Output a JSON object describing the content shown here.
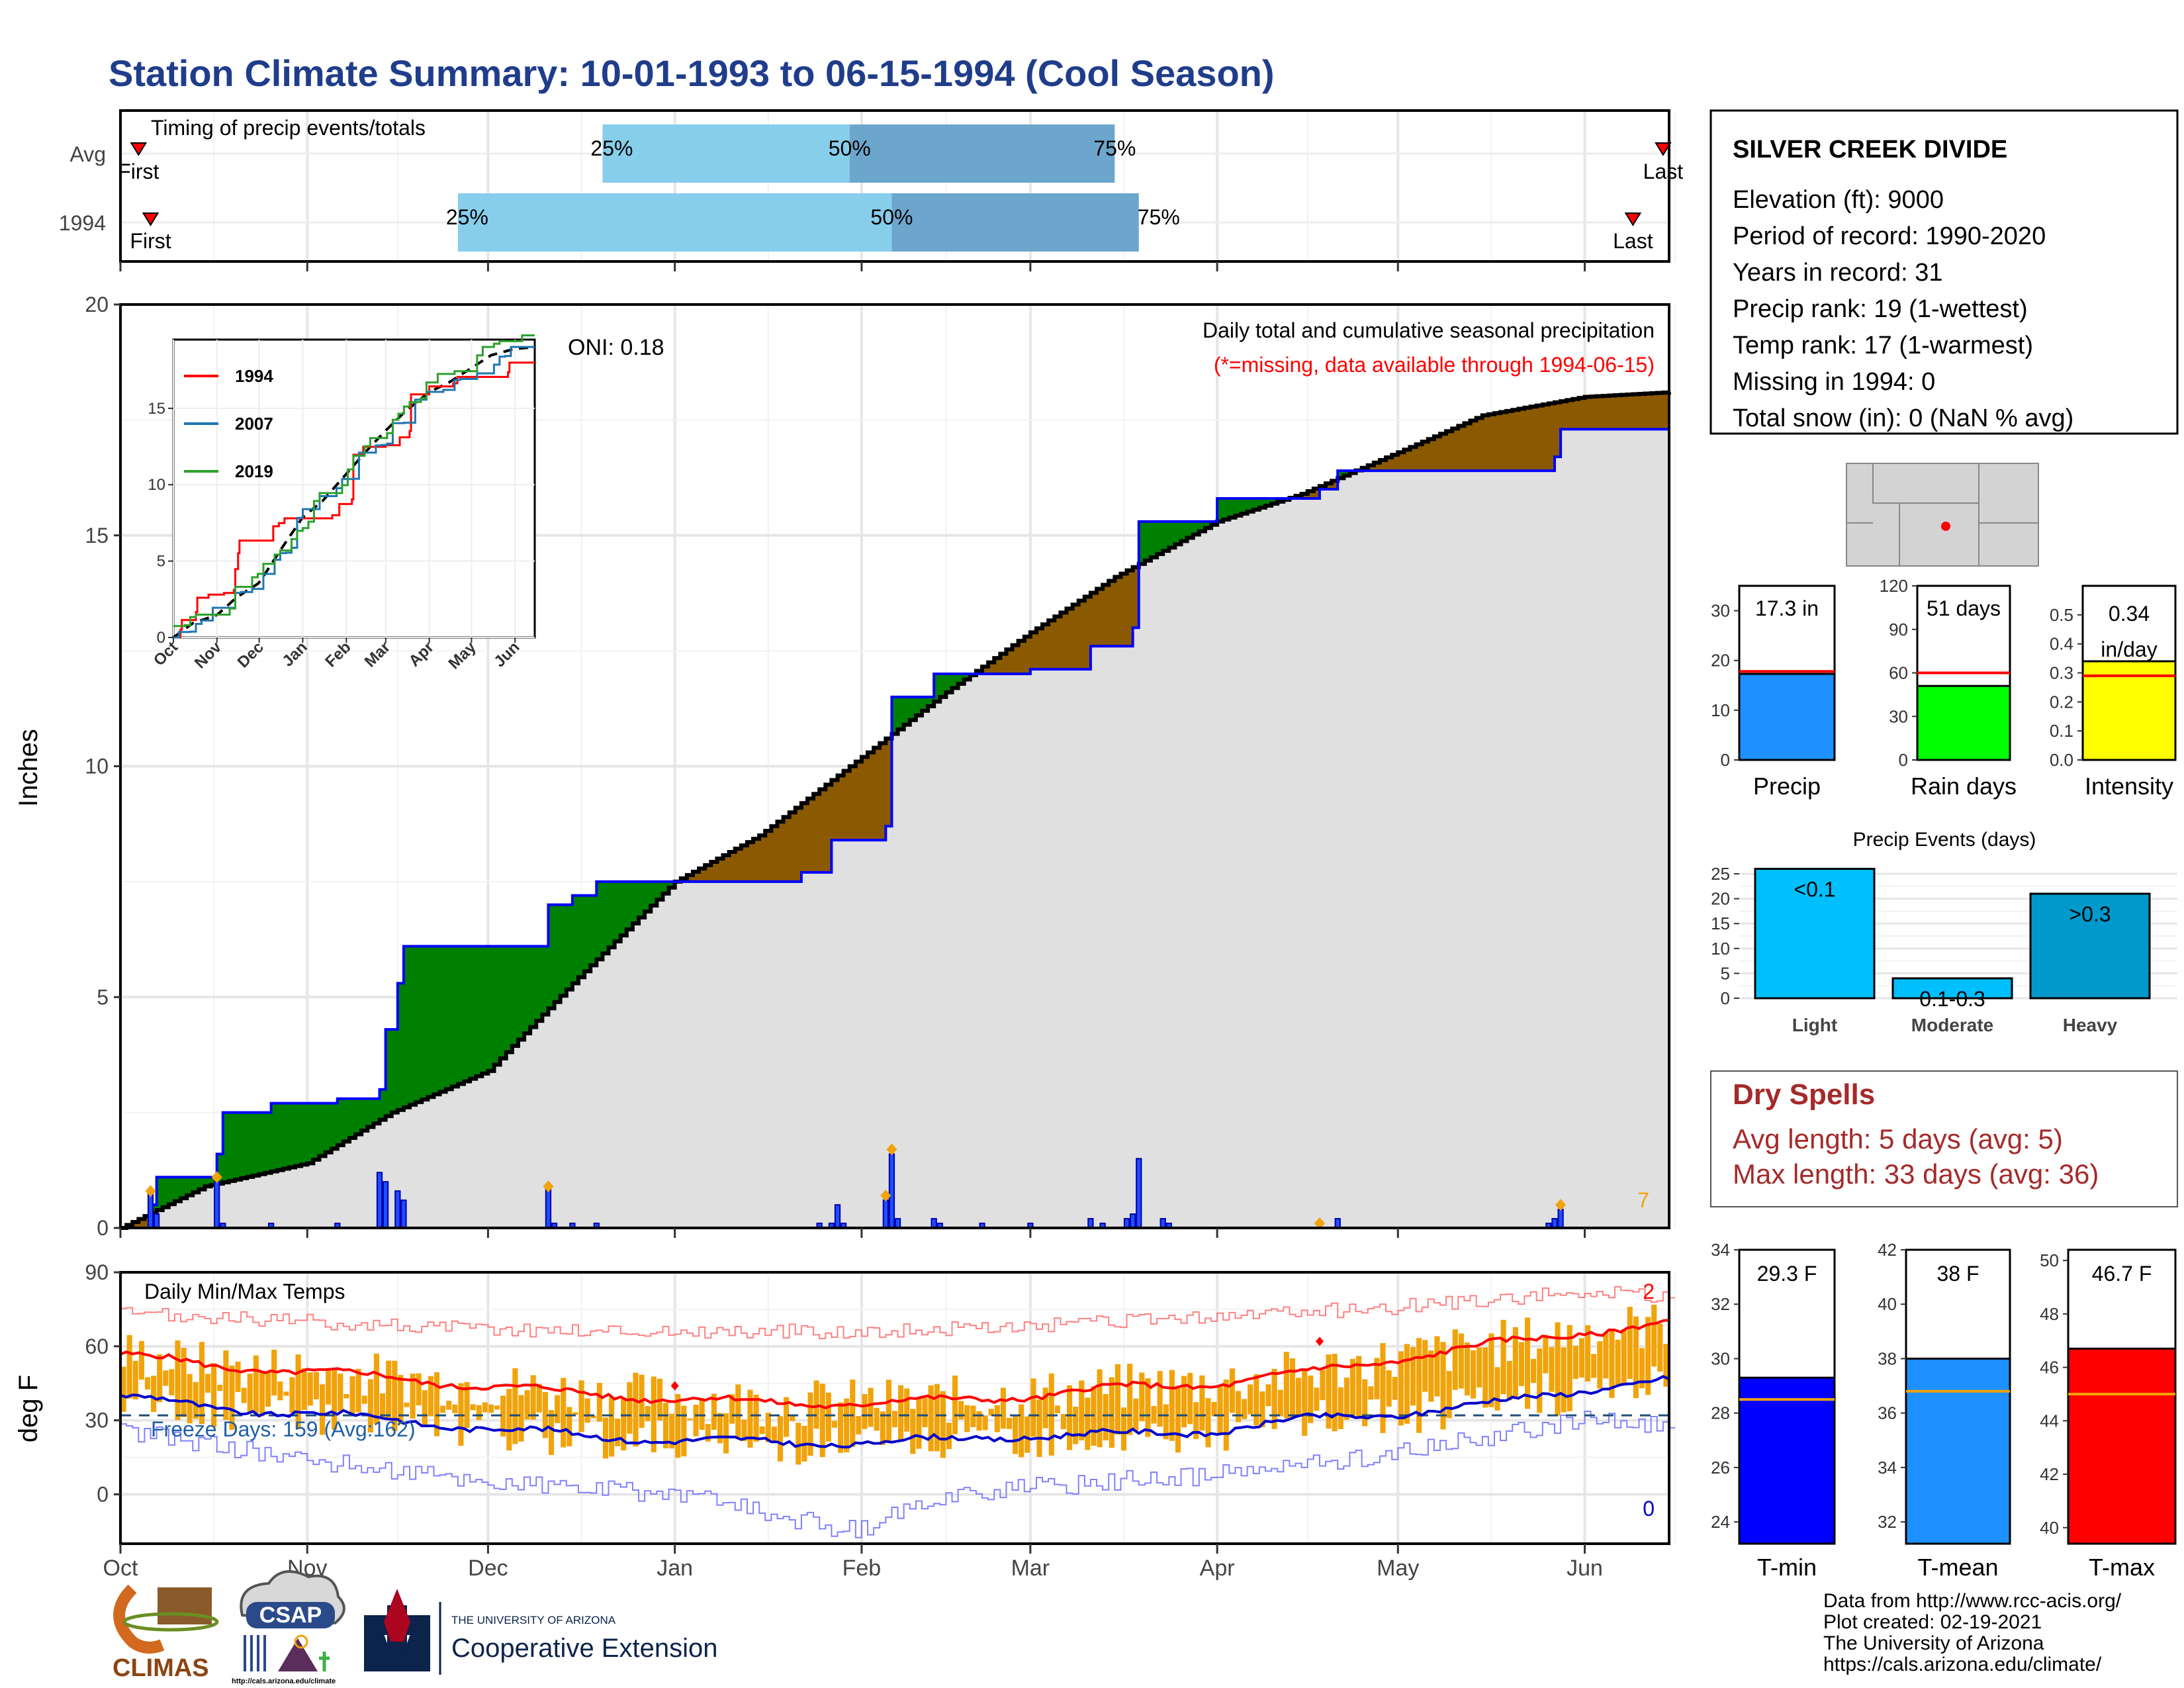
{
  "title": "Station Climate Summary: 10-01-1993 to 06-15-1994 (Cool Season)",
  "colors": {
    "title": "#1f3d8a",
    "q_light": "#87ceeb",
    "q_dark": "#6ca6cd",
    "surplus": "#008000",
    "deficit": "#8b5a00",
    "avg_fill": "#e0e0e0",
    "obs_line": "#0000ff",
    "tmax_line": "#ff0000",
    "tmin_line": "#0000cc",
    "range_bar": "#f0a30a",
    "dry_spell": "#a52a2a",
    "precip_bar": "#1e90ff",
    "rain_bar": "#00ff00",
    "intensity_bar": "#ffff00",
    "light_bar": "#00bfff",
    "heavy_bar": "#0099cc",
    "tmin_bar": "#0000ff",
    "tmean_bar": "#1e90ff",
    "tmax_bar": "#ff0000",
    "avg_marker": "#f0a30a"
  },
  "timing": {
    "title": "Timing of precip events/totals",
    "rows": [
      {
        "label": "Avg",
        "first_date": "1993-10-04",
        "q25": "1993-12-20",
        "q50": "1994-01-30",
        "q75": "1994-03-15",
        "last_date": "1994-06-14",
        "first_label": "First",
        "last_label": "Last"
      },
      {
        "label": "1994",
        "first_date": "1993-10-06",
        "q25": "1993-11-26",
        "q50": "1994-02-06",
        "q75": "1994-03-19",
        "last_date": "1994-06-09",
        "first_label": "First",
        "last_label": "Last"
      }
    ],
    "q_labels": [
      "25%",
      "50%",
      "75%"
    ]
  },
  "precip_panel": {
    "ylabel": "Inches",
    "y_ticks": [
      "0",
      "5",
      "10",
      "15",
      "20"
    ],
    "ylim": [
      0,
      20
    ],
    "oni": "ONI: 0.18",
    "annotation": "Daily total and cumulative seasonal precipitation",
    "missing_note": "(*=missing, data available through 1994-06-15)",
    "extreme_count": "7"
  },
  "temp_panel": {
    "title": "Daily Min/Max Temps",
    "ylabel": "deg F",
    "y_ticks": [
      "0",
      "30",
      "60",
      "90"
    ],
    "ylim": [
      -20,
      90
    ],
    "freeze_text": "Freeze Days: 159 (Avg:162)",
    "max_record_count": "2",
    "min_record_count": "0"
  },
  "x_months": [
    "Oct",
    "Nov",
    "Dec",
    "Jan",
    "Feb",
    "Mar",
    "Apr",
    "May",
    "Jun"
  ],
  "inset": {
    "y_ticks": [
      "0",
      "5",
      "10",
      "15"
    ],
    "x_months": [
      "Oct",
      "Nov",
      "Dec",
      "Jan",
      "Feb",
      "Mar",
      "Apr",
      "May",
      "Jun"
    ],
    "legend": [
      "1994",
      "2007",
      "2019"
    ],
    "legend_colors": [
      "#ff0000",
      "#1f77b4",
      "#2ca02c"
    ]
  },
  "station": {
    "name": "SILVER CREEK DIVIDE",
    "lines": [
      "Elevation (ft): 9000",
      "Period of record: 1990-2020",
      "Years in record: 31",
      "Precip rank: 19 (1-wettest)",
      "Temp rank: 17 (1-warmest)",
      "Missing in 1994: 0",
      "Total snow (in): 0 (NaN % avg)"
    ]
  },
  "summary_bars": [
    {
      "label": "Precip",
      "value_text": "17.3 in",
      "value": 17.3,
      "avg": 17.8,
      "ymax": 35,
      "ticks": [
        "0",
        "10",
        "20",
        "30"
      ],
      "tick_values": [
        0,
        10,
        20,
        30
      ]
    },
    {
      "label": "Rain days",
      "value_text": "51 days",
      "value": 51,
      "avg": 60,
      "ymax": 120,
      "ticks": [
        "0",
        "30",
        "60",
        "90",
        "120"
      ],
      "tick_values": [
        0,
        30,
        60,
        90,
        120
      ]
    },
    {
      "label": "Intensity",
      "value_text": "0.34 in/day",
      "value": 0.34,
      "avg": 0.29,
      "ymax": 0.6,
      "ticks": [
        "0.0",
        "0.1",
        "0.2",
        "0.3",
        "0.4",
        "0.5"
      ],
      "tick_values": [
        0,
        0.1,
        0.2,
        0.3,
        0.4,
        0.5
      ]
    }
  ],
  "events": {
    "title": "Precip Events (days)",
    "categories": [
      "Light",
      "Moderate",
      "Heavy"
    ],
    "values": [
      26,
      4,
      21
    ],
    "labels": [
      "<0.1",
      "0.1-0.3",
      ">0.3"
    ],
    "ticks": [
      "0",
      "5",
      "10",
      "15",
      "20",
      "25"
    ]
  },
  "dry_spells": {
    "title": "Dry Spells",
    "avg_line": "Avg length: 5 days (avg: 5)",
    "max_line": "Max length: 33 days (avg: 36)"
  },
  "temp_bars": [
    {
      "label": "T-min",
      "value_text": "29.3 F",
      "value": 29.3,
      "avg": 28.5,
      "ymin": 23.2,
      "ymax": 34,
      "ticks": [
        "24",
        "26",
        "28",
        "30",
        "32",
        "34"
      ],
      "tick_values": [
        24,
        26,
        28,
        30,
        32,
        34
      ]
    },
    {
      "label": "T-mean",
      "value_text": "38 F",
      "value": 38,
      "avg": 36.8,
      "ymin": 31.2,
      "ymax": 42,
      "ticks": [
        "32",
        "34",
        "36",
        "38",
        "40",
        "42"
      ],
      "tick_values": [
        32,
        34,
        36,
        38,
        40,
        42
      ]
    },
    {
      "label": "T-max",
      "value_text": "46.7 F",
      "value": 46.7,
      "avg": 45,
      "ymin": 39.4,
      "ymax": 50.4,
      "ticks": [
        "40",
        "42",
        "44",
        "46",
        "48",
        "50"
      ],
      "tick_values": [
        40,
        42,
        44,
        46,
        48,
        50
      ]
    }
  ],
  "footer": [
    "Data from http://www.rcc-acis.org/",
    "Plot created: 02-19-2021",
    "The University of Arizona",
    "https://cals.arizona.edu/climate/"
  ],
  "logos": {
    "climas": "CLIMAS",
    "csap": "CSAP",
    "csap_url": "http://cals.arizona.edu/climate",
    "ua_small": "THE UNIVERSITY OF ARIZONA",
    "ua_big": "Cooperative Extension"
  },
  "chart_data": [
    {
      "type": "area",
      "title": "Daily total and cumulative seasonal precipitation",
      "ylabel": "Inches",
      "ylim": [
        0,
        20
      ],
      "x_unit": "date",
      "average_cumulative": [
        [
          "1993-10-01",
          0.0
        ],
        [
          "1993-10-15",
          0.9
        ],
        [
          "1993-11-01",
          1.4
        ],
        [
          "1993-11-15",
          2.5
        ],
        [
          "1993-12-01",
          3.4
        ],
        [
          "1993-12-15",
          5.3
        ],
        [
          "1994-01-01",
          7.5
        ],
        [
          "1994-01-15",
          8.5
        ],
        [
          "1994-02-01",
          10.2
        ],
        [
          "1994-02-15",
          11.6
        ],
        [
          "1994-03-01",
          12.9
        ],
        [
          "1994-03-15",
          14.1
        ],
        [
          "1994-04-01",
          15.3
        ],
        [
          "1994-04-15",
          15.9
        ],
        [
          "1994-05-01",
          16.8
        ],
        [
          "1994-05-15",
          17.6
        ],
        [
          "1994-06-01",
          18.0
        ],
        [
          "1994-06-15",
          18.1
        ]
      ],
      "observed_cumulative": [
        [
          "1993-10-01",
          0.0
        ],
        [
          "1993-10-06",
          0.5
        ],
        [
          "1993-10-07",
          1.1
        ],
        [
          "1993-10-17",
          1.6
        ],
        [
          "1993-10-18",
          2.5
        ],
        [
          "1993-10-26",
          2.7
        ],
        [
          "1993-11-06",
          2.8
        ],
        [
          "1993-11-13",
          3.0
        ],
        [
          "1993-11-14",
          4.3
        ],
        [
          "1993-11-16",
          5.3
        ],
        [
          "1993-11-17",
          6.1
        ],
        [
          "1993-12-11",
          7.0
        ],
        [
          "1993-12-15",
          7.2
        ],
        [
          "1993-12-19",
          7.5
        ],
        [
          "1994-01-22",
          7.7
        ],
        [
          "1994-01-27",
          8.4
        ],
        [
          "1994-02-05",
          8.7
        ],
        [
          "1994-02-06",
          11.5
        ],
        [
          "1994-02-13",
          12.0
        ],
        [
          "1994-03-01",
          12.1
        ],
        [
          "1994-03-11",
          12.6
        ],
        [
          "1994-03-18",
          13.0
        ],
        [
          "1994-03-19",
          15.3
        ],
        [
          "1994-04-01",
          15.8
        ],
        [
          "1994-04-18",
          16.0
        ],
        [
          "1994-04-21",
          16.4
        ],
        [
          "1994-04-25",
          16.4
        ],
        [
          "1994-05-27",
          16.7
        ],
        [
          "1994-05-28",
          17.3
        ],
        [
          "1994-06-15",
          17.3
        ]
      ],
      "daily_precip": [
        [
          "1993-10-06",
          0.8
        ],
        [
          "1993-10-07",
          0.3
        ],
        [
          "1993-10-17",
          1.0
        ],
        [
          "1993-10-18",
          0.1
        ],
        [
          "1993-10-26",
          0.1
        ],
        [
          "1993-11-06",
          0.1
        ],
        [
          "1993-11-13",
          1.2
        ],
        [
          "1993-11-14",
          1.0
        ],
        [
          "1993-11-16",
          0.8
        ],
        [
          "1993-11-17",
          0.6
        ],
        [
          "1993-12-11",
          0.9
        ],
        [
          "1993-12-12",
          0.1
        ],
        [
          "1993-12-15",
          0.1
        ],
        [
          "1993-12-19",
          0.1
        ],
        [
          "1994-01-25",
          0.1
        ],
        [
          "1994-01-27",
          0.1
        ],
        [
          "1994-01-28",
          0.5
        ],
        [
          "1994-01-29",
          0.1
        ],
        [
          "1994-02-05",
          0.6
        ],
        [
          "1994-02-06",
          1.6
        ],
        [
          "1994-02-07",
          0.2
        ],
        [
          "1994-02-13",
          0.2
        ],
        [
          "1994-02-14",
          0.1
        ],
        [
          "1994-02-21",
          0.1
        ],
        [
          "1994-03-01",
          0.1
        ],
        [
          "1994-03-11",
          0.2
        ],
        [
          "1994-03-13",
          0.1
        ],
        [
          "1994-03-17",
          0.2
        ],
        [
          "1994-03-18",
          0.3
        ],
        [
          "1994-03-19",
          1.5
        ],
        [
          "1994-03-23",
          0.2
        ],
        [
          "1994-03-24",
          0.1
        ],
        [
          "1994-04-21",
          0.2
        ],
        [
          "1994-05-26",
          0.1
        ],
        [
          "1994-05-27",
          0.2
        ],
        [
          "1994-05-28",
          0.4
        ]
      ],
      "extreme_markers": [
        [
          "1993-10-06",
          0.8
        ],
        [
          "1993-10-17",
          1.1
        ],
        [
          "1993-12-11",
          0.9
        ],
        [
          "1994-02-05",
          0.7
        ],
        [
          "1994-02-06",
          1.7
        ],
        [
          "1994-04-18",
          0.1
        ],
        [
          "1994-05-28",
          0.5
        ]
      ]
    },
    {
      "type": "line",
      "title": "Daily Min/Max Temps",
      "ylabel": "deg F",
      "ylim": [
        -20,
        90
      ],
      "x_unit": "date",
      "avg_tmax": [
        [
          "1993-10-01",
          57
        ],
        [
          "1993-10-15",
          52
        ],
        [
          "1993-11-01",
          50
        ],
        [
          "1993-11-15",
          47
        ],
        [
          "1993-12-01",
          44
        ],
        [
          "1993-12-15",
          41
        ],
        [
          "1994-01-01",
          39
        ],
        [
          "1994-01-15",
          37
        ],
        [
          "1994-02-01",
          37
        ],
        [
          "1994-02-15",
          38
        ],
        [
          "1994-03-01",
          40
        ],
        [
          "1994-03-15",
          43
        ],
        [
          "1994-04-01",
          45
        ],
        [
          "1994-04-15",
          49
        ],
        [
          "1994-05-01",
          55
        ],
        [
          "1994-05-15",
          60
        ],
        [
          "1994-06-01",
          66
        ],
        [
          "1994-06-15",
          69
        ]
      ],
      "avg_tmin": [
        [
          "1993-10-01",
          40
        ],
        [
          "1993-10-15",
          35
        ],
        [
          "1993-11-01",
          33
        ],
        [
          "1993-11-15",
          30
        ],
        [
          "1993-12-01",
          27
        ],
        [
          "1993-12-15",
          24
        ],
        [
          "1994-01-01",
          22
        ],
        [
          "1994-01-15",
          21
        ],
        [
          "1994-02-01",
          21
        ],
        [
          "1994-02-15",
          22
        ],
        [
          "1994-03-01",
          24
        ],
        [
          "1994-03-15",
          24
        ],
        [
          "1994-04-01",
          26
        ],
        [
          "1994-04-15",
          30
        ],
        [
          "1994-05-01",
          33
        ],
        [
          "1994-05-15",
          36
        ],
        [
          "1994-06-01",
          43
        ],
        [
          "1994-06-15",
          46
        ]
      ],
      "record_high": [
        [
          "1993-10-01",
          73
        ],
        [
          "1993-11-01",
          70
        ],
        [
          "1993-12-01",
          67
        ],
        [
          "1994-01-01",
          66
        ],
        [
          "1994-02-01",
          66
        ],
        [
          "1994-03-01",
          68
        ],
        [
          "1994-04-01",
          72
        ],
        [
          "1994-05-01",
          76
        ],
        [
          "1994-06-01",
          82
        ],
        [
          "1994-06-15",
          80
        ]
      ],
      "record_low": [
        [
          "1993-10-01",
          26
        ],
        [
          "1993-11-01",
          14
        ],
        [
          "1993-12-01",
          5
        ],
        [
          "1994-01-01",
          0
        ],
        [
          "1994-01-31",
          -15
        ],
        [
          "1994-02-15",
          0
        ],
        [
          "1994-03-01",
          3
        ],
        [
          "1994-04-01",
          8
        ],
        [
          "1994-05-01",
          17
        ],
        [
          "1994-06-01",
          30
        ],
        [
          "1994-06-15",
          28
        ]
      ],
      "freeze_line": 32
    }
  ]
}
